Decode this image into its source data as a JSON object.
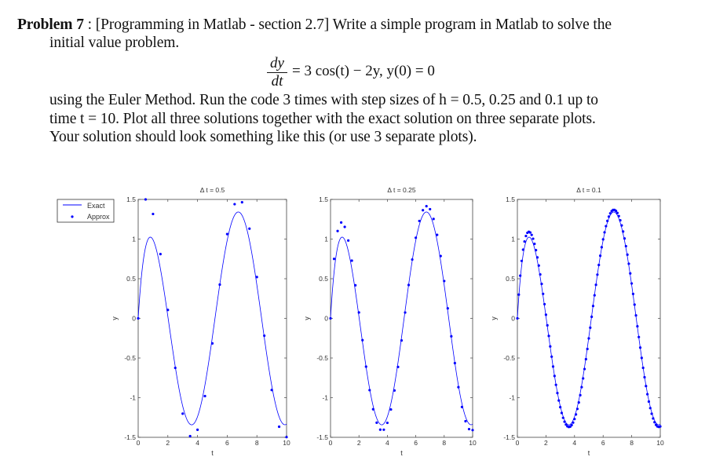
{
  "problem": {
    "label": "Problem 7",
    "line1": ": [Programming in Matlab - section 2.7] Write a simple program in Matlab to solve the",
    "line2": "initial value problem.",
    "eq_num": "dy",
    "eq_den": "dt",
    "eq_rhs": "= 3 cos(t) − 2y,     y(0) = 0",
    "line3": "using the Euler Method. Run the code 3 times with step sizes of h = 0.5, 0.25 and 0.1 up to",
    "line4": "time t = 10. Plot all three solutions together with the exact solution on three separate plots.",
    "line5": "Your solution should look something like this (or use 3 separate plots)."
  },
  "legend": {
    "exact": "Exact",
    "approx": "Approx",
    "placement": "outside-left-top"
  },
  "colors": {
    "series": "#0000ff",
    "axis": "#444444"
  },
  "chart_data": [
    {
      "type": "line+scatter",
      "title": "Δ t = 0.5",
      "xlabel": "t",
      "ylabel": "y",
      "xlim": [
        0,
        10
      ],
      "ylim": [
        -1.5,
        1.5
      ],
      "xticks": [
        "0",
        "2",
        "4",
        "6",
        "8",
        "10"
      ],
      "yticks": [
        "-1.5",
        "-1",
        "-0.5",
        "0",
        "0.5",
        "1",
        "1.5"
      ],
      "grid": false,
      "step": 0.5,
      "approx": {
        "t": [
          0,
          0.5,
          1,
          1.5,
          2,
          2.5,
          3,
          3.5,
          4,
          4.5,
          5,
          5.5,
          6,
          6.5,
          7,
          7.5,
          8,
          8.5,
          9,
          9.5,
          10
        ],
        "y": [
          0,
          1.5,
          1.3164,
          0.8105,
          0.1061,
          -0.6242,
          -1.2017,
          -1.485,
          -1.4048,
          -0.9805,
          -0.3159,
          0.4255,
          1.0633,
          1.4402,
          1.464,
          1.1309,
          0.5207,
          -0.2183,
          -0.9034,
          -1.3667,
          -1.497
        ]
      }
    },
    {
      "type": "line+scatter",
      "title": "Δ t = 0.25",
      "xlabel": "t",
      "ylabel": "y",
      "xlim": [
        0,
        10
      ],
      "ylim": [
        -1.5,
        1.5
      ],
      "xticks": [
        "0",
        "2",
        "4",
        "6",
        "8",
        "10"
      ],
      "yticks": [
        "-1.5",
        "-1",
        "-0.5",
        "0",
        "0.5",
        "1",
        "1.5"
      ],
      "grid": false,
      "step": 0.25
    },
    {
      "type": "line+scatter",
      "title": "Δ t = 0.1",
      "xlabel": "t",
      "ylabel": "y",
      "xlim": [
        0,
        10
      ],
      "ylim": [
        -1.5,
        1.5
      ],
      "xticks": [
        "0",
        "2",
        "4",
        "6",
        "8",
        "10"
      ],
      "yticks": [
        "-1.5",
        "-1",
        "-0.5",
        "0",
        "0.5",
        "1",
        "1.5"
      ],
      "grid": false,
      "step": 0.1
    }
  ]
}
